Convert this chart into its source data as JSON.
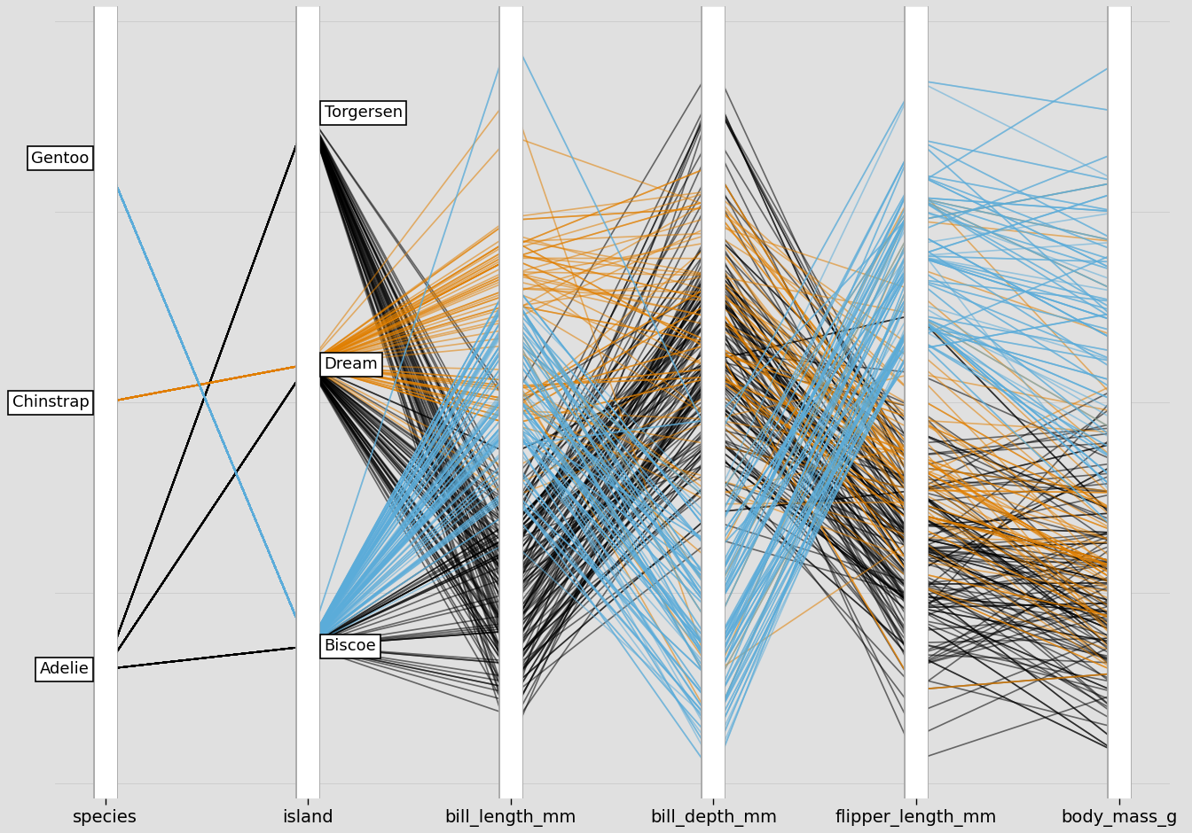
{
  "columns": [
    "species",
    "island",
    "bill_length_mm",
    "bill_depth_mm",
    "flipper_length_mm",
    "body_mass_g"
  ],
  "species_categories": [
    "Gentoo",
    "Chinstrap",
    "Adelie"
  ],
  "island_categories": [
    "Torgersen",
    "Dream",
    "Biscoe"
  ],
  "species_colors": {
    "Adelie": "#000000",
    "Chinstrap": "#E07F00",
    "Gentoo": "#5BACD9"
  },
  "background_color": "#E0E0E0",
  "label_fontsize": 14,
  "species_y": {
    "Gentoo": 0.82,
    "Chinstrap": 0.5,
    "Adelie": 0.15
  },
  "island_y": {
    "Torgersen": 0.88,
    "Dream": 0.55,
    "Biscoe": 0.18
  },
  "bl_min": 32,
  "bl_max": 60,
  "bd_min": 13,
  "bd_max": 22,
  "fl_min": 170,
  "fl_max": 235,
  "bm_min": 2700,
  "bm_max": 6500,
  "line_alpha": 0.55,
  "line_width": 1.2,
  "axis_lw": 18
}
